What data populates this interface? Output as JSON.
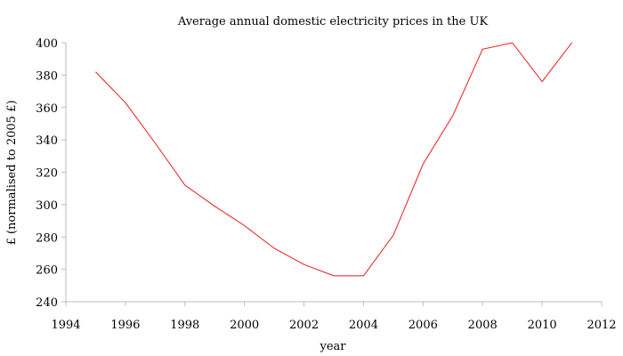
{
  "chart_data": {
    "type": "line",
    "title": "Average annual domestic electricity prices in the UK",
    "xlabel": "year",
    "ylabel": "£ (normalised to 2005 £)",
    "x": [
      1995,
      1996,
      1997,
      1998,
      1999,
      2000,
      2001,
      2002,
      2003,
      2004,
      2005,
      2006,
      2007,
      2008,
      2009,
      2010,
      2011
    ],
    "series": [
      {
        "name": "price",
        "color": "#e8191c",
        "values": [
          382,
          363,
          338,
          312,
          299,
          287,
          273,
          263,
          256,
          256,
          281,
          325,
          355,
          396,
          400,
          376,
          400
        ]
      }
    ],
    "xlim": [
      1994,
      2012
    ],
    "xticks": [
      1994,
      1996,
      1998,
      2000,
      2002,
      2004,
      2006,
      2008,
      2010,
      2012
    ],
    "ylim": [
      240,
      400
    ],
    "yticks": [
      240,
      260,
      280,
      300,
      320,
      340,
      360,
      380,
      400
    ],
    "grid": false,
    "legend": false
  }
}
